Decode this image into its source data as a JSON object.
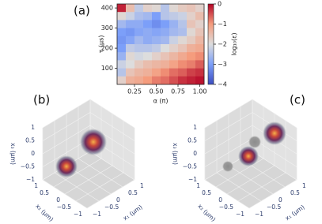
{
  "chart_data": [
    {
      "type": "heatmap",
      "panel_label": "(a)",
      "xlabel": "α (π)",
      "ylabel": "τ (μs)",
      "colorbar_label": "log₁₀(ε)",
      "x": [
        0.1,
        0.2,
        0.3,
        0.4,
        0.5,
        0.6,
        0.7,
        0.8,
        0.9,
        1.0
      ],
      "y": [
        400,
        360,
        320,
        280,
        240,
        200,
        160,
        120,
        80,
        40
      ],
      "z": [
        [
          -0.2,
          -1.5,
          -2.3,
          -1.8,
          -1.9,
          -2.4,
          -1.9,
          -1.7,
          -1.6,
          -1.8
        ],
        [
          -1.9,
          -2.2,
          -2.5,
          -2.6,
          -3.0,
          -2.4,
          -2.3,
          -2.2,
          -1.8,
          -1.5
        ],
        [
          -2.6,
          -2.8,
          -2.8,
          -3.0,
          -3.2,
          -3.0,
          -2.7,
          -2.4,
          -1.6,
          -1.8
        ],
        [
          -3.0,
          -3.1,
          -2.9,
          -2.8,
          -2.9,
          -2.8,
          -2.6,
          -2.5,
          -1.9,
          -1.6
        ],
        [
          -3.1,
          -2.9,
          -2.6,
          -2.8,
          -2.7,
          -2.6,
          -2.2,
          -1.9,
          -1.7,
          -1.4
        ],
        [
          -3.0,
          -2.3,
          -2.4,
          -2.4,
          -2.3,
          -2.0,
          -1.8,
          -1.6,
          -1.3,
          -1.2
        ],
        [
          -2.7,
          -1.9,
          -2.1,
          -2.0,
          -1.8,
          -1.6,
          -1.4,
          -1.2,
          -1.0,
          -0.9
        ],
        [
          -2.2,
          -2.0,
          -1.7,
          -1.5,
          -1.4,
          -1.3,
          -1.1,
          -0.9,
          -0.8,
          -0.6
        ],
        [
          -2.4,
          -1.6,
          -1.4,
          -1.3,
          -1.1,
          -0.9,
          -0.7,
          -0.6,
          -0.4,
          -0.3
        ],
        [
          -1.8,
          -1.3,
          -1.2,
          -1.0,
          -0.8,
          -0.7,
          -0.5,
          -0.3,
          -0.2,
          -0.1
        ]
      ],
      "xlim": [
        0.05,
        1.05
      ],
      "ylim": [
        20,
        420
      ],
      "zlim": [
        -4,
        0
      ],
      "xticks": [
        {
          "value": 0.25,
          "label": "0.25"
        },
        {
          "value": 0.5,
          "label": "0.50"
        },
        {
          "value": 0.75,
          "label": "0.75"
        },
        {
          "value": 1.0,
          "label": "1.00"
        }
      ],
      "yticks": [
        100,
        200,
        300,
        400
      ],
      "zticks": [
        0,
        {
          "value": -1,
          "label": "−1"
        },
        {
          "value": -2,
          "label": "−2"
        },
        {
          "value": -3,
          "label": "−3"
        },
        {
          "value": -4,
          "label": "−4"
        }
      ],
      "colormap": "coolwarm"
    },
    {
      "type": "scatter3d",
      "panel_label": "(b)",
      "xlabel": "x₁ (μm)",
      "ylabel": "x₂ (μm)",
      "zlabel": "x₃ (μm)",
      "xlim": [
        -1,
        1
      ],
      "ylim": [
        -1,
        1
      ],
      "zlim": [
        -1,
        1
      ],
      "xticks": [
        {
          "value": -1,
          "label": "−1"
        },
        {
          "value": -0.5,
          "label": "−0.5"
        },
        0,
        0.5,
        1
      ],
      "yticks": [
        {
          "value": -1,
          "label": "−1"
        },
        {
          "value": -0.5,
          "label": "−0.5"
        },
        0,
        0.5,
        1
      ],
      "zticks": [
        {
          "value": -1,
          "label": "−1"
        },
        {
          "value": -0.5,
          "label": "−0.5"
        },
        0,
        0.5,
        1
      ]
    },
    {
      "type": "scatter3d",
      "panel_label": "(c)",
      "xlabel": "x₁ (μm)",
      "ylabel": "x₂ (μm)",
      "zlabel": "x₃ (μm)",
      "xlim": [
        -1,
        1
      ],
      "ylim": [
        -1,
        1
      ],
      "zlim": [
        -1,
        1
      ],
      "xticks": [
        {
          "value": -1,
          "label": "−1"
        },
        {
          "value": -0.5,
          "label": "−0.5"
        },
        0,
        0.5,
        1
      ],
      "yticks": [
        {
          "value": -1,
          "label": "−1"
        },
        {
          "value": -0.5,
          "label": "−0.5"
        },
        0,
        0.5,
        1
      ],
      "zticks": [
        {
          "value": -1,
          "label": "−1"
        },
        {
          "value": -0.5,
          "label": "−0.5"
        },
        0,
        0.5,
        1
      ]
    }
  ]
}
